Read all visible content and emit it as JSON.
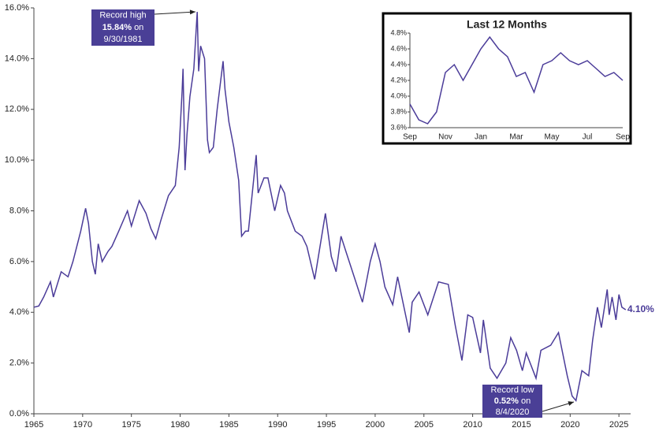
{
  "chart_data": [
    {
      "type": "line",
      "color": "#4b3c99",
      "x": [
        1965,
        1965.5,
        1966,
        1966.7,
        1967,
        1967.8,
        1968.5,
        1969,
        1969.8,
        1970.3,
        1970.6,
        1971,
        1971.3,
        1971.6,
        1972,
        1972.6,
        1973,
        1973.7,
        1974.6,
        1975,
        1975.8,
        1976.5,
        1977,
        1977.5,
        1978,
        1978.8,
        1979.5,
        1979.9,
        1980.2,
        1980.3,
        1980.5,
        1980.7,
        1981,
        1981.4,
        1981.75,
        1981.9,
        1982.1,
        1982.5,
        1982.8,
        1983,
        1983.4,
        1983.8,
        1984.4,
        1984.6,
        1985,
        1985.5,
        1986,
        1986.3,
        1986.7,
        1987,
        1987.8,
        1988,
        1988.6,
        1989,
        1989.7,
        1990.3,
        1990.7,
        1991,
        1991.8,
        1992.5,
        1993,
        1993.8,
        1994.9,
        1995.5,
        1996,
        1996.5,
        1997,
        1998.7,
        1999.5,
        2000,
        2000.5,
        2001,
        2001.8,
        2002.3,
        2003.5,
        2003.8,
        2004.5,
        2005.4,
        2006.5,
        2007.5,
        2008.2,
        2008.9,
        2009.5,
        2010,
        2010.8,
        2011.1,
        2011.8,
        2012.5,
        2013.4,
        2013.9,
        2014.5,
        2015.1,
        2015.5,
        2016.5,
        2017,
        2018,
        2018.8,
        2019.7,
        2020.2,
        2020.6,
        2021.2,
        2021.9,
        2022.3,
        2022.8,
        2023.2,
        2023.8,
        2024,
        2024.3,
        2024.7,
        2025,
        2025.3,
        2025.7
      ],
      "values": [
        4.2,
        4.25,
        4.6,
        5.2,
        4.6,
        5.6,
        5.4,
        6.0,
        7.2,
        8.1,
        7.5,
        6.0,
        5.5,
        6.7,
        6.0,
        6.4,
        6.6,
        7.2,
        8.0,
        7.4,
        8.4,
        7.9,
        7.3,
        6.9,
        7.6,
        8.6,
        9.0,
        10.5,
        12.7,
        13.6,
        9.6,
        11.0,
        12.5,
        13.6,
        15.84,
        13.5,
        14.5,
        14.0,
        10.8,
        10.3,
        10.5,
        12.0,
        13.9,
        12.8,
        11.5,
        10.5,
        9.2,
        7.0,
        7.2,
        7.2,
        10.2,
        8.7,
        9.3,
        9.3,
        8.0,
        9.0,
        8.7,
        8.0,
        7.2,
        7.0,
        6.6,
        5.3,
        7.9,
        6.2,
        5.6,
        7.0,
        6.4,
        4.4,
        6.0,
        6.7,
        6.0,
        5.0,
        4.3,
        5.4,
        3.2,
        4.4,
        4.8,
        3.9,
        5.2,
        5.1,
        3.5,
        2.1,
        3.9,
        3.8,
        2.4,
        3.7,
        1.8,
        1.4,
        2.0,
        3.0,
        2.5,
        1.7,
        2.4,
        1.4,
        2.5,
        2.7,
        3.2,
        1.5,
        0.7,
        0.52,
        1.7,
        1.5,
        2.9,
        4.2,
        3.4,
        4.9,
        3.9,
        4.6,
        3.7,
        4.7,
        4.2,
        4.1
      ],
      "end_label": "4.10%",
      "xlim": [
        1965,
        2026.2
      ],
      "xticks": [
        1965,
        1970,
        1975,
        1980,
        1985,
        1990,
        1995,
        2000,
        2005,
        2010,
        2015,
        2020,
        2025
      ],
      "ylim": [
        0,
        16
      ],
      "yticks": [
        {
          "value": 0,
          "label": "0.0%"
        },
        {
          "value": 2,
          "label": "2.0%"
        },
        {
          "value": 4,
          "label": "4.0%"
        },
        {
          "value": 6,
          "label": "6.0%"
        },
        {
          "value": 8,
          "label": "8.0%"
        },
        {
          "value": 10,
          "label": "10.0%"
        },
        {
          "value": 12,
          "label": "12.0%"
        },
        {
          "value": 14,
          "label": "14.0%"
        },
        {
          "value": 16,
          "label": "16.0%"
        }
      ],
      "annotations": [
        {
          "text": "Record high",
          "value": "15.84%",
          "suffix": "on",
          "date": "9/30/1981"
        },
        {
          "text": "Record low",
          "value": "0.52%",
          "suffix": "on",
          "date": "8/4/2020"
        }
      ]
    },
    {
      "type": "line",
      "title": "Last 12 Months",
      "color": "#4b3c99",
      "categories": [
        "Sep",
        null,
        null,
        null,
        "Nov",
        null,
        null,
        null,
        "Jan",
        null,
        null,
        null,
        "Mar",
        null,
        null,
        null,
        "May",
        null,
        null,
        null,
        "Jul",
        null,
        null,
        null,
        "Sep"
      ],
      "values": [
        3.9,
        3.7,
        3.65,
        3.8,
        4.3,
        4.4,
        4.2,
        4.4,
        4.6,
        4.75,
        4.6,
        4.5,
        4.25,
        4.3,
        4.05,
        4.4,
        4.45,
        4.55,
        4.45,
        4.4,
        4.45,
        4.35,
        4.25,
        4.3,
        4.2
      ],
      "ylim": [
        3.6,
        4.8
      ],
      "yticks": [
        {
          "value": 3.6,
          "label": "3.6%"
        },
        {
          "value": 3.8,
          "label": "3.8%"
        },
        {
          "value": 4.0,
          "label": "4.0%"
        },
        {
          "value": 4.2,
          "label": "4.2%"
        },
        {
          "value": 4.4,
          "label": "4.4%"
        },
        {
          "value": 4.6,
          "label": "4.6%"
        },
        {
          "value": 4.8,
          "label": "4.8%"
        }
      ]
    }
  ]
}
